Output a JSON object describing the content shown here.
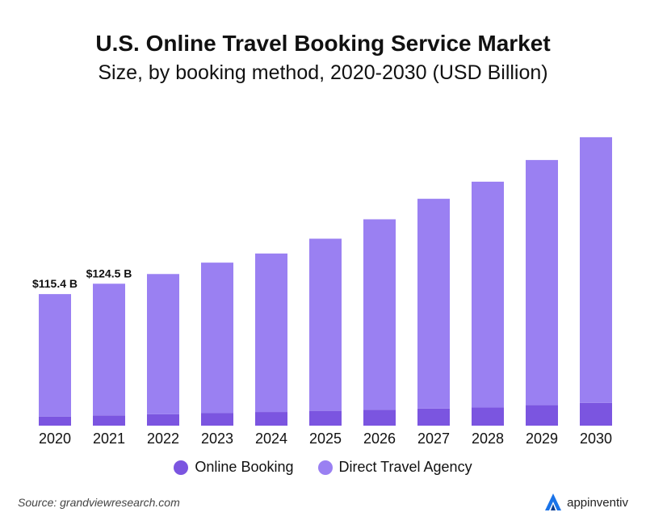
{
  "chart_data": {
    "type": "bar",
    "stacked": true,
    "title": "U.S. Online Travel Booking Service Market",
    "subtitle": "Size, by booking method, 2020-2030 (USD Billion)",
    "categories": [
      "2020",
      "2021",
      "2022",
      "2023",
      "2024",
      "2025",
      "2026",
      "2027",
      "2028",
      "2029",
      "2030"
    ],
    "series": [
      {
        "name": "Online Booking",
        "color": "#7b55e0",
        "values": [
          8.0,
          9.0,
          10.0,
          11.0,
          12.0,
          13.0,
          14.0,
          15.0,
          16.0,
          18.0,
          20.0
        ]
      },
      {
        "name": "Direct Travel Agency",
        "color": "#9a80f2",
        "values": [
          107.4,
          115.5,
          123.0,
          132.0,
          139.0,
          151.0,
          167.0,
          184.0,
          198.0,
          215.0,
          233.0
        ]
      }
    ],
    "data_labels": [
      {
        "category": "2020",
        "text": "$115.4 B"
      },
      {
        "category": "2021",
        "text": "$124.5 B"
      }
    ],
    "ylim": [
      0,
      260
    ],
    "grid": false,
    "legend_position": "bottom"
  },
  "legend": {
    "items": [
      "Online Booking",
      "Direct Travel Agency"
    ]
  },
  "source": "Source: grandviewresearch.com",
  "brand": {
    "name": "appinventiv",
    "icon": "appinventiv-logo-icon",
    "color": "#1a73e8"
  }
}
